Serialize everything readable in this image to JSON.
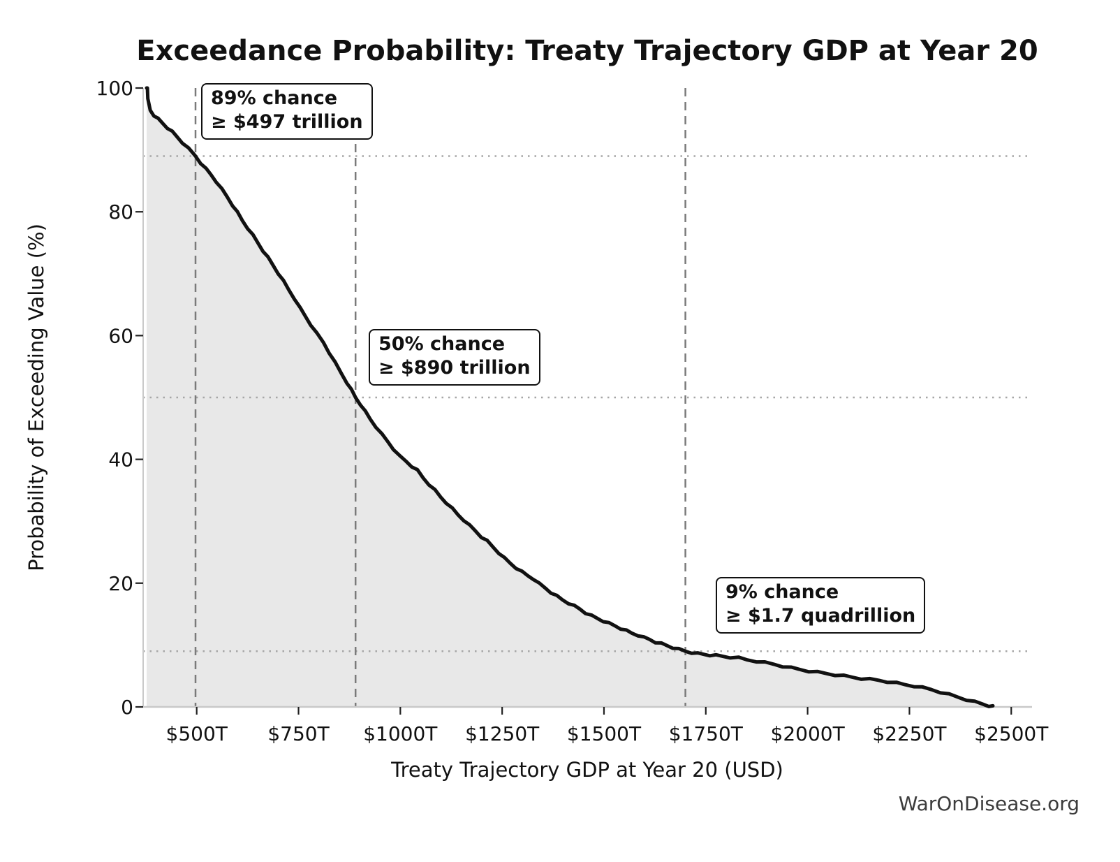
{
  "page": {
    "watermark": "WarOnDisease.org"
  },
  "chart_data": {
    "type": "line",
    "title": "Exceedance Probability: Treaty Trajectory GDP at Year 20",
    "xlabel": "Treaty Trajectory GDP at Year 20 (USD)",
    "ylabel": "Probability of Exceeding Value (%)",
    "x_unit": "trillions of USD",
    "xlim": [
      368.5,
      2551
    ],
    "ylim": [
      0,
      100
    ],
    "grid": "reference lines only",
    "legend_position": "none",
    "x_ticks": {
      "values": [
        500,
        750,
        1000,
        1250,
        1500,
        1750,
        2000,
        2250,
        2500
      ],
      "labels": [
        "$500T",
        "$750T",
        "$1000T",
        "$1250T",
        "$1500T",
        "$1750T",
        "$2000T",
        "$2250T",
        "$2500T"
      ]
    },
    "y_ticks": {
      "values": [
        0,
        20,
        40,
        60,
        80,
        100
      ],
      "labels": [
        "0",
        "20",
        "40",
        "60",
        "80",
        "100"
      ]
    },
    "reference_lines": {
      "vertical_values_trillions": [
        497,
        890,
        1700
      ],
      "horizontal_probabilities_pct": [
        89,
        50,
        9
      ]
    },
    "annotations": [
      {
        "line1": "89% chance",
        "line2": "≥ $497 trillion",
        "value_trillions": 497,
        "probability_pct": 89
      },
      {
        "line1": "50% chance",
        "line2": "≥ $890 trillion",
        "value_trillions": 890,
        "probability_pct": 50
      },
      {
        "line1": "9% chance",
        "line2": "≥ $1.7 quadrillion",
        "value_trillions": 1700,
        "probability_pct": 9
      }
    ],
    "series": [
      {
        "name": "Exceedance probability of Treaty Trajectory GDP at Year 20",
        "style": {
          "color": "#111111",
          "width": 5,
          "fill_under": true
        },
        "points": [
          [
            377,
            100
          ],
          [
            379,
            100
          ],
          [
            380,
            98.3
          ],
          [
            383,
            97.2
          ],
          [
            386,
            96.4
          ],
          [
            395,
            95.6
          ],
          [
            405,
            95
          ],
          [
            415,
            94.4
          ],
          [
            428,
            93.6
          ],
          [
            440,
            92.9
          ],
          [
            452,
            92.1
          ],
          [
            465,
            91.2
          ],
          [
            480,
            90.2
          ],
          [
            497,
            89
          ],
          [
            510,
            87.9
          ],
          [
            523,
            86.9
          ],
          [
            535,
            86
          ],
          [
            548,
            84.9
          ],
          [
            562,
            83.6
          ],
          [
            575,
            82.4
          ],
          [
            588,
            81.1
          ],
          [
            600,
            79.9
          ],
          [
            612,
            78.6
          ],
          [
            625,
            77.4
          ],
          [
            638,
            76.2
          ],
          [
            650,
            75
          ],
          [
            663,
            73.7
          ],
          [
            675,
            72.6
          ],
          [
            688,
            71.3
          ],
          [
            700,
            70.1
          ],
          [
            713,
            68.8
          ],
          [
            726,
            67.4
          ],
          [
            740,
            66
          ],
          [
            754,
            64.4
          ],
          [
            767,
            63.1
          ],
          [
            780,
            61.8
          ],
          [
            795,
            60.3
          ],
          [
            811,
            58.9
          ],
          [
            825,
            57.3
          ],
          [
            840,
            55.6
          ],
          [
            855,
            53.9
          ],
          [
            869,
            52.4
          ],
          [
            880,
            51.2
          ],
          [
            890,
            50
          ],
          [
            902,
            48.9
          ],
          [
            914,
            47.7
          ],
          [
            926,
            46.5
          ],
          [
            940,
            45.3
          ],
          [
            955,
            44
          ],
          [
            970,
            42.8
          ],
          [
            983,
            41.7
          ],
          [
            1000,
            40.4
          ],
          [
            1014,
            39.7
          ],
          [
            1028,
            38.9
          ],
          [
            1042,
            38.2
          ],
          [
            1056,
            37
          ],
          [
            1070,
            36
          ],
          [
            1085,
            35
          ],
          [
            1099,
            33.9
          ],
          [
            1113,
            33
          ],
          [
            1128,
            32
          ],
          [
            1142,
            31
          ],
          [
            1156,
            30.2
          ],
          [
            1170,
            29.3
          ],
          [
            1185,
            28.4
          ],
          [
            1199,
            27.5
          ],
          [
            1213,
            26.8
          ],
          [
            1228,
            25.8
          ],
          [
            1242,
            24.9
          ],
          [
            1256,
            24
          ],
          [
            1270,
            23.2
          ],
          [
            1284,
            22.5
          ],
          [
            1299,
            21.8
          ],
          [
            1313,
            21.2
          ],
          [
            1327,
            20.7
          ],
          [
            1341,
            19.9
          ],
          [
            1356,
            19.2
          ],
          [
            1370,
            18.5
          ],
          [
            1384,
            17.9
          ],
          [
            1398,
            17.3
          ],
          [
            1413,
            16.8
          ],
          [
            1427,
            16.3
          ],
          [
            1441,
            15.8
          ],
          [
            1455,
            15.2
          ],
          [
            1470,
            14.7
          ],
          [
            1484,
            14.3
          ],
          [
            1498,
            13.9
          ],
          [
            1512,
            13.5
          ],
          [
            1527,
            13.1
          ],
          [
            1541,
            12.7
          ],
          [
            1555,
            12.3
          ],
          [
            1569,
            11.9
          ],
          [
            1584,
            11.6
          ],
          [
            1598,
            11.2
          ],
          [
            1612,
            10.9
          ],
          [
            1626,
            10.5
          ],
          [
            1641,
            10.2
          ],
          [
            1655,
            9.9
          ],
          [
            1669,
            9.6
          ],
          [
            1684,
            9.3
          ],
          [
            1700,
            9
          ],
          [
            1715,
            8.8
          ],
          [
            1730,
            8.6
          ],
          [
            1745,
            8.5
          ],
          [
            1760,
            8.4
          ],
          [
            1775,
            8.3
          ],
          [
            1790,
            8.2
          ],
          [
            1810,
            8.05
          ],
          [
            1831,
            7.9
          ],
          [
            1852,
            7.6
          ],
          [
            1874,
            7.4
          ],
          [
            1895,
            7.15
          ],
          [
            1917,
            6.9
          ],
          [
            1938,
            6.6
          ],
          [
            1960,
            6.3
          ],
          [
            1981,
            6.05
          ],
          [
            2003,
            5.8
          ],
          [
            2024,
            5.6
          ],
          [
            2046,
            5.4
          ],
          [
            2067,
            5.2
          ],
          [
            2089,
            5
          ],
          [
            2110,
            4.8
          ],
          [
            2132,
            4.6
          ],
          [
            2153,
            4.45
          ],
          [
            2175,
            4.3
          ],
          [
            2196,
            4.1
          ],
          [
            2218,
            3.85
          ],
          [
            2239,
            3.6
          ],
          [
            2261,
            3.4
          ],
          [
            2282,
            3.1
          ],
          [
            2304,
            2.8
          ],
          [
            2326,
            2.4
          ],
          [
            2347,
            2
          ],
          [
            2368,
            1.6
          ],
          [
            2390,
            1.2
          ],
          [
            2410,
            0.8
          ],
          [
            2430,
            0.45
          ],
          [
            2445,
            0.2
          ],
          [
            2455,
            0.05
          ]
        ]
      }
    ],
    "colors": {
      "curve": "#111111",
      "fill_under_curve": "#e8e8e8",
      "dashed_reference": "#7a7a7a",
      "dotted_reference": "#a6a6a6",
      "spine": "#c9c9c9",
      "tick_mark": "#222222",
      "text": "#111111",
      "watermark": "#3c3c3c",
      "background": "#ffffff"
    }
  }
}
